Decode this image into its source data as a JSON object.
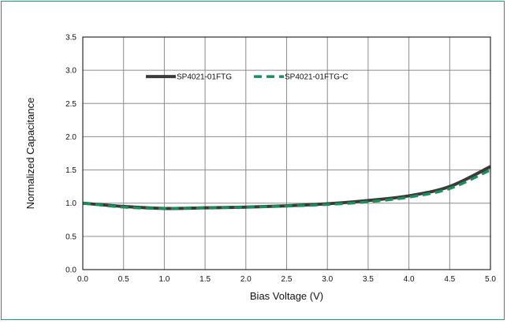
{
  "colors": {
    "border": "#1e9a6e",
    "grid": "#8c8c8c",
    "axis": "#000000"
  },
  "chart_data": {
    "type": "line",
    "title": "",
    "xlabel": "Bias Voltage (V)",
    "ylabel": "Normalized Capacitance",
    "xlim": [
      0.0,
      5.0
    ],
    "ylim": [
      0.0,
      3.5
    ],
    "x_ticks": [
      "0.0",
      "0.5",
      "1.0",
      "1.5",
      "2.0",
      "2.5",
      "3.0",
      "3.5",
      "4.0",
      "4.5",
      "5.0"
    ],
    "y_ticks": [
      "0.0",
      "0.5",
      "1.0",
      "1.5",
      "2.0",
      "2.5",
      "3.0",
      "3.5"
    ],
    "grid": true,
    "legend_position": "top-center",
    "series": [
      {
        "name": "SP4021-01FTG",
        "color": "#3a3a3a",
        "style": "solid",
        "x": [
          0.0,
          0.5,
          1.0,
          1.5,
          2.0,
          2.5,
          3.0,
          3.5,
          4.0,
          4.5,
          5.0
        ],
        "y": [
          1.0,
          0.95,
          0.92,
          0.93,
          0.94,
          0.96,
          0.99,
          1.04,
          1.11,
          1.25,
          1.55
        ]
      },
      {
        "name": "SP4021-01FTG-C",
        "color": "#1a8f5c",
        "style": "dashed",
        "x": [
          0.0,
          0.5,
          1.0,
          1.5,
          2.0,
          2.5,
          3.0,
          3.5,
          4.0,
          4.5,
          5.0
        ],
        "y": [
          1.0,
          0.94,
          0.92,
          0.93,
          0.94,
          0.955,
          0.98,
          1.02,
          1.09,
          1.22,
          1.5
        ]
      }
    ]
  }
}
